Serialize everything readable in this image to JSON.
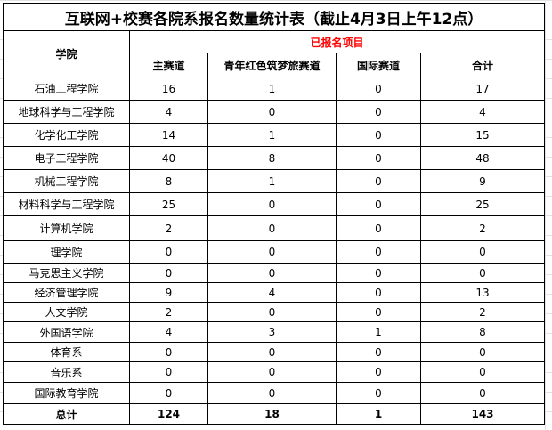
{
  "title": "互联网+校赛各院系报名数量统计表（截止4月3日上午12点）",
  "header": {
    "college": "学院",
    "group": "已报名项目",
    "columns": [
      "主赛道",
      "青年红色筑梦旅赛道",
      "国际赛道",
      "合计"
    ]
  },
  "rows": [
    {
      "name": "石油工程学院",
      "v": [
        "16",
        "1",
        "0",
        "17"
      ]
    },
    {
      "name": "地球科学与工程学院",
      "v": [
        "4",
        "0",
        "0",
        "4"
      ]
    },
    {
      "name": "化学化工学院",
      "v": [
        "14",
        "1",
        "0",
        "15"
      ]
    },
    {
      "name": "电子工程学院",
      "v": [
        "40",
        "8",
        "0",
        "48"
      ]
    },
    {
      "name": "机械工程学院",
      "v": [
        "8",
        "1",
        "0",
        "9"
      ]
    },
    {
      "name": "材料科学与工程学院",
      "v": [
        "25",
        "0",
        "0",
        "25"
      ]
    },
    {
      "name": "计算机学院",
      "v": [
        "2",
        "0",
        "0",
        "2"
      ]
    },
    {
      "name": "理学院",
      "v": [
        "0",
        "0",
        "0",
        "0"
      ]
    },
    {
      "name": "马克思主义学院",
      "v": [
        "0",
        "0",
        "0",
        "0"
      ]
    },
    {
      "name": "经济管理学院",
      "v": [
        "9",
        "4",
        "0",
        "13"
      ]
    },
    {
      "name": "人文学院",
      "v": [
        "2",
        "0",
        "0",
        "2"
      ]
    },
    {
      "name": "外国语学院",
      "v": [
        "4",
        "3",
        "1",
        "8"
      ]
    },
    {
      "name": "体育系",
      "v": [
        "0",
        "0",
        "0",
        "0"
      ]
    },
    {
      "name": "音乐系",
      "v": [
        "0",
        "0",
        "0",
        "0"
      ]
    },
    {
      "name": "国际教育学院",
      "v": [
        "0",
        "0",
        "0",
        "0"
      ]
    }
  ],
  "total": {
    "name": "总计",
    "v": [
      "124",
      "18",
      "1",
      "143"
    ]
  },
  "colors": {
    "accent": "#ff0000"
  }
}
